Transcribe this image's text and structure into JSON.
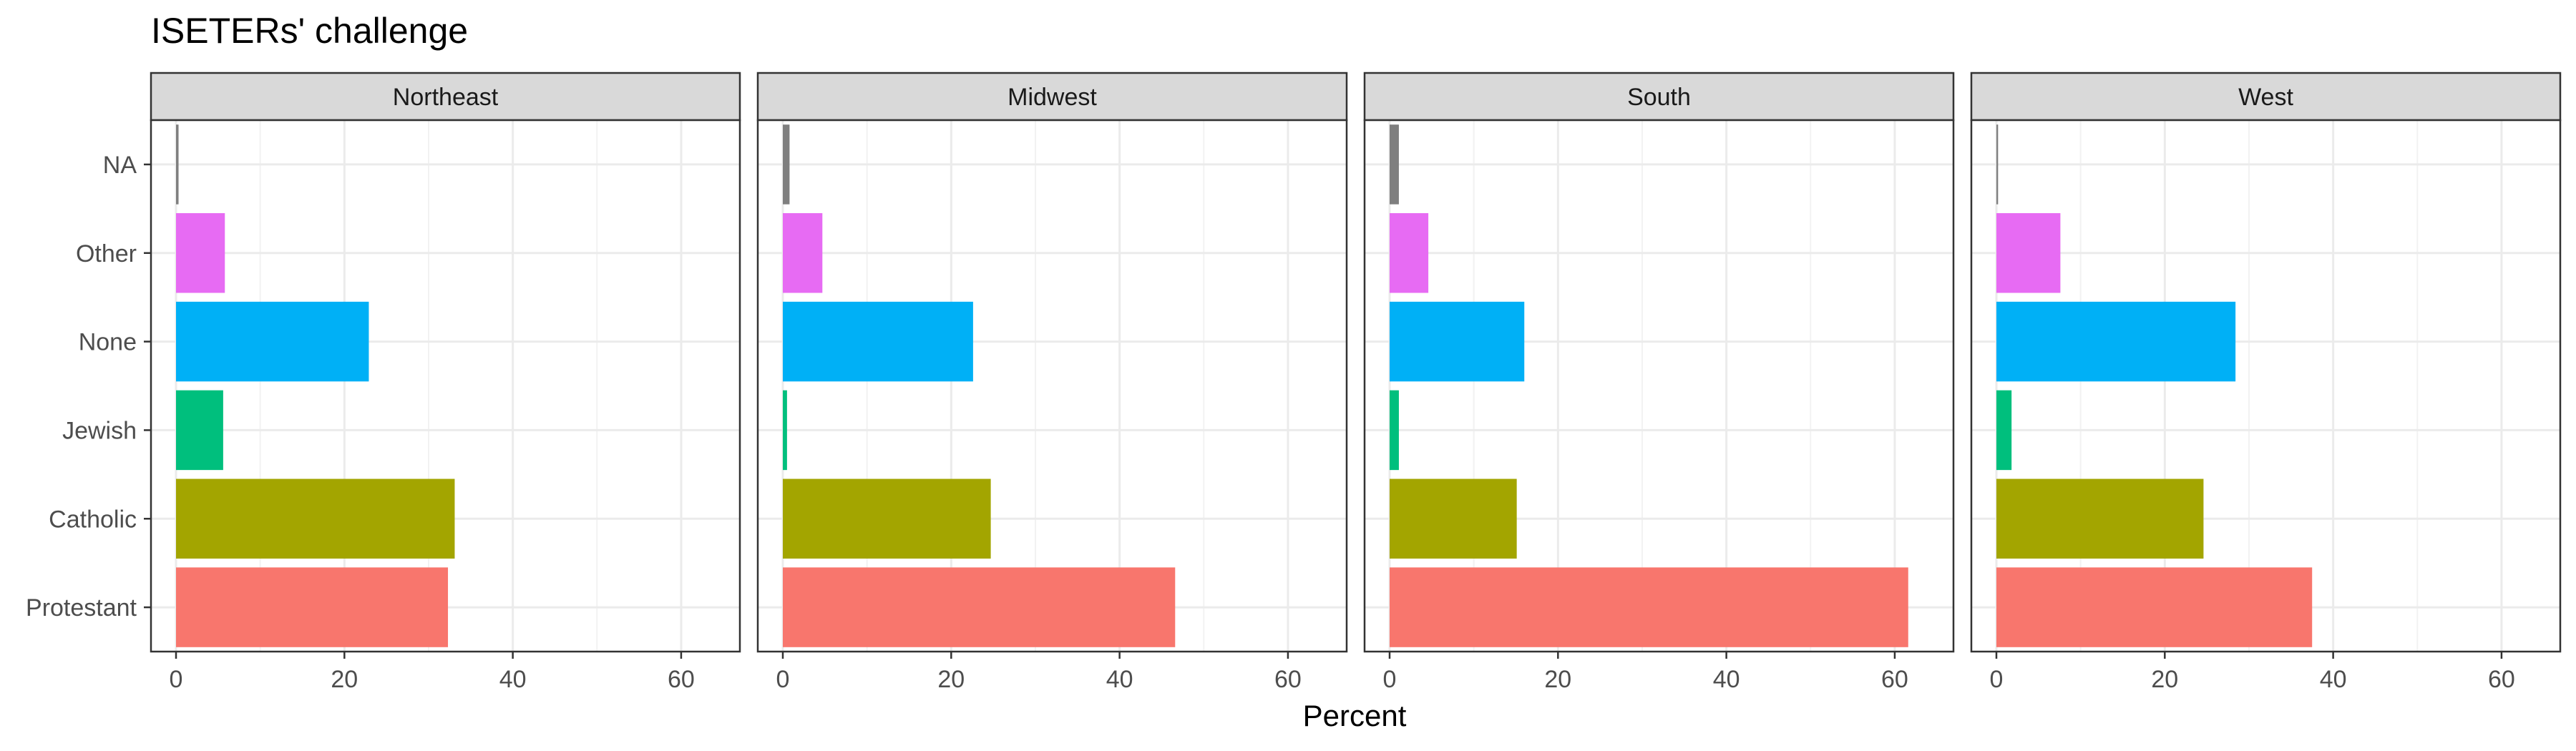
{
  "chart_data": {
    "type": "bar",
    "orientation": "horizontal",
    "title": "ISETERs' challenge",
    "xlabel": "Percent",
    "ylabel": "",
    "xlim": [
      0,
      64
    ],
    "x_ticks": [
      "0",
      "20",
      "40",
      "60"
    ],
    "grid": true,
    "legend": "none",
    "categories": [
      "Protestant",
      "Catholic",
      "Jewish",
      "None",
      "Other",
      "NA"
    ],
    "category_colors": {
      "Protestant": "#F8766D",
      "Catholic": "#A3A500",
      "Jewish": "#00BF7D",
      "None": "#00B0F6",
      "Other": "#E76BF3",
      "NA": "#7F7F7F"
    },
    "facets": [
      {
        "name": "Northeast",
        "values": [
          32.3,
          33.1,
          5.6,
          22.9,
          5.8,
          0.3
        ]
      },
      {
        "name": "Midwest",
        "values": [
          46.6,
          24.7,
          0.5,
          22.6,
          4.7,
          0.8
        ]
      },
      {
        "name": "South",
        "values": [
          61.6,
          15.1,
          1.1,
          16.0,
          4.6,
          1.1
        ]
      },
      {
        "name": "West",
        "values": [
          37.5,
          24.6,
          1.8,
          28.4,
          7.6,
          0.2
        ]
      }
    ]
  }
}
